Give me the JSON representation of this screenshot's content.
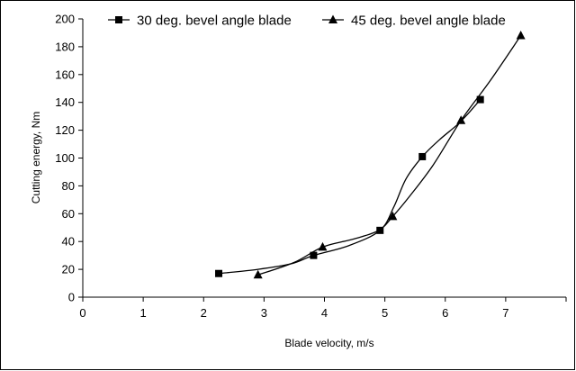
{
  "chart_data": {
    "type": "line",
    "title": "",
    "xlabel": "Blade velocity, m/s",
    "ylabel": "Cutting energy, Nm",
    "xlim": [
      0,
      8
    ],
    "ylim": [
      0,
      200
    ],
    "xticks": [
      0,
      1,
      2,
      3,
      4,
      5,
      6,
      7
    ],
    "yticks": [
      0,
      20,
      40,
      60,
      80,
      100,
      120,
      140,
      160,
      180,
      200
    ],
    "grid": false,
    "legend_position": "top",
    "series": [
      {
        "name": "30 deg. bevel angle blade",
        "marker": "square",
        "color": "#000000",
        "points": [
          {
            "x": 2.25,
            "y": 17
          },
          {
            "x": 3.82,
            "y": 30
          },
          {
            "x": 4.92,
            "y": 48
          },
          {
            "x": 5.62,
            "y": 101
          },
          {
            "x": 6.58,
            "y": 142
          }
        ],
        "curve": [
          [
            2.25,
            17
          ],
          [
            2.9,
            20
          ],
          [
            3.45,
            24
          ],
          [
            3.82,
            30
          ],
          [
            4.4,
            37
          ],
          [
            4.92,
            48
          ],
          [
            5.15,
            65
          ],
          [
            5.35,
            85
          ],
          [
            5.62,
            101
          ],
          [
            5.9,
            113
          ],
          [
            6.2,
            124
          ],
          [
            6.4,
            133
          ],
          [
            6.58,
            142
          ]
        ]
      },
      {
        "name": "45 deg. bevel angle blade",
        "marker": "triangle",
        "color": "#000000",
        "points": [
          {
            "x": 2.9,
            "y": 16
          },
          {
            "x": 3.97,
            "y": 36
          },
          {
            "x": 5.13,
            "y": 58
          },
          {
            "x": 6.26,
            "y": 127
          },
          {
            "x": 7.25,
            "y": 188
          }
        ],
        "curve": [
          [
            2.9,
            16
          ],
          [
            3.5,
            25
          ],
          [
            3.97,
            36
          ],
          [
            4.5,
            42
          ],
          [
            4.9,
            48
          ],
          [
            5.13,
            58
          ],
          [
            5.4,
            72
          ],
          [
            5.8,
            95
          ],
          [
            6.26,
            127
          ],
          [
            6.75,
            156
          ],
          [
            7.25,
            188
          ]
        ]
      }
    ]
  }
}
